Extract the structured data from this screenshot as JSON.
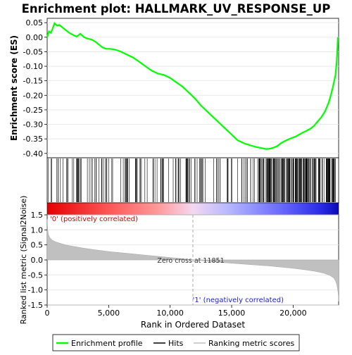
{
  "chart_data": [
    {
      "type": "line",
      "title": "Enrichment plot: HALLMARK_UV_RESPONSE_UP",
      "xlabel": "",
      "ylabel": "Enrichment score (ES)",
      "xlim": [
        0,
        23700
      ],
      "ylim": [
        -0.415,
        0.065
      ],
      "yticks": [
        "0.05",
        "0.00",
        "-0.05",
        "-0.10",
        "-0.15",
        "-0.20",
        "-0.25",
        "-0.30",
        "-0.35",
        "-0.40"
      ],
      "ytick_values": [
        0.05,
        0.0,
        -0.05,
        -0.1,
        -0.15,
        -0.2,
        -0.25,
        -0.3,
        -0.35,
        -0.4
      ],
      "grid": true,
      "series": [
        {
          "name": "Enrichment profile",
          "color": "#00ff00",
          "x": [
            0,
            150,
            300,
            450,
            600,
            800,
            1000,
            1200,
            1500,
            1800,
            2100,
            2400,
            2700,
            3000,
            3300,
            3600,
            3900,
            4200,
            4500,
            4800,
            5100,
            5400,
            5700,
            6000,
            6500,
            7000,
            7500,
            8000,
            8500,
            9000,
            9500,
            10000,
            10500,
            11000,
            11500,
            12000,
            12500,
            13000,
            13500,
            14000,
            14500,
            15000,
            15500,
            16000,
            16500,
            17000,
            17500,
            17800,
            18100,
            18400,
            18700,
            19000,
            19300,
            19600,
            19900,
            20200,
            20500,
            20800,
            21100,
            21400,
            21700,
            22000,
            22300,
            22600,
            22900,
            23100,
            23300,
            23450,
            23550,
            23650
          ],
          "y": [
            0.0,
            0.02,
            0.015,
            0.03,
            0.048,
            0.04,
            0.042,
            0.035,
            0.025,
            0.015,
            0.008,
            0.002,
            0.012,
            0.0,
            -0.005,
            -0.008,
            -0.015,
            -0.025,
            -0.035,
            -0.04,
            -0.04,
            -0.042,
            -0.045,
            -0.05,
            -0.06,
            -0.07,
            -0.085,
            -0.1,
            -0.115,
            -0.125,
            -0.13,
            -0.14,
            -0.155,
            -0.17,
            -0.19,
            -0.21,
            -0.235,
            -0.255,
            -0.275,
            -0.295,
            -0.315,
            -0.335,
            -0.355,
            -0.365,
            -0.372,
            -0.378,
            -0.382,
            -0.385,
            -0.384,
            -0.38,
            -0.375,
            -0.365,
            -0.358,
            -0.352,
            -0.347,
            -0.342,
            -0.335,
            -0.328,
            -0.322,
            -0.315,
            -0.305,
            -0.29,
            -0.275,
            -0.255,
            -0.225,
            -0.195,
            -0.16,
            -0.13,
            -0.08,
            0.0
          ]
        }
      ],
      "hits_count": 158
    },
    {
      "type": "area",
      "title": "",
      "xlabel": "Rank in Ordered Dataset",
      "ylabel": "Ranked list metric (Signal2Noise)",
      "xlim": [
        0,
        23700
      ],
      "ylim": [
        -1.5,
        1.5
      ],
      "xticks": [
        "0",
        "5,000",
        "10,000",
        "15,000",
        "20,000"
      ],
      "xtick_values": [
        0,
        5000,
        10000,
        15000,
        20000
      ],
      "yticks": [
        "1.5",
        "1.0",
        "0.5",
        "0.0",
        "-0.5",
        "-1.0",
        "-1.5"
      ],
      "ytick_values": [
        1.5,
        1.0,
        0.5,
        0.0,
        -0.5,
        -1.0,
        -1.5
      ],
      "grid": true,
      "series": [
        {
          "name": "Ranking metric scores",
          "color": "#c0c0c0",
          "x": [
            0,
            40,
            100,
            200,
            400,
            700,
            1000,
            1500,
            2000,
            3000,
            4000,
            5000,
            6000,
            7000,
            8000,
            9000,
            10000,
            11000,
            11851,
            13000,
            14000,
            15000,
            16000,
            17000,
            18000,
            19000,
            20000,
            21000,
            21800,
            22500,
            23000,
            23300,
            23450,
            23550,
            23620,
            23680,
            23700
          ],
          "y": [
            1.35,
            1.02,
            0.85,
            0.75,
            0.66,
            0.6,
            0.56,
            0.5,
            0.46,
            0.39,
            0.33,
            0.28,
            0.24,
            0.2,
            0.16,
            0.12,
            0.08,
            0.04,
            0.0,
            -0.04,
            -0.08,
            -0.11,
            -0.14,
            -0.17,
            -0.2,
            -0.24,
            -0.28,
            -0.33,
            -0.38,
            -0.44,
            -0.52,
            -0.6,
            -0.7,
            -0.82,
            -0.98,
            -1.2,
            -1.38
          ]
        }
      ],
      "annotations": {
        "positive_label": "'0' (positively correlated)",
        "negative_label": "'1' (negatively correlated)",
        "zero_cross_label": "Zero cross at 11851",
        "zero_cross": 11851
      }
    }
  ],
  "legend": {
    "items": [
      {
        "label": "Enrichment profile",
        "color": "#00ff00"
      },
      {
        "label": "Hits",
        "color": "#000000"
      },
      {
        "label": "Ranking metric scores",
        "color": "#c0c0c0"
      }
    ]
  }
}
